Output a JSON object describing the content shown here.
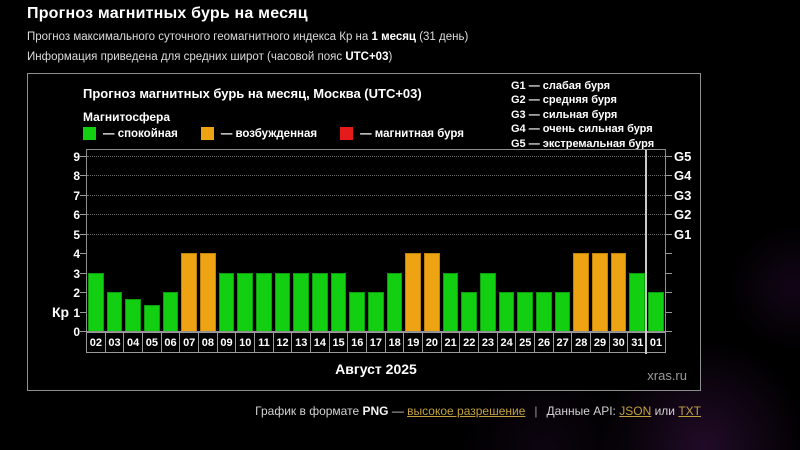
{
  "header": {
    "title": "Прогноз магнитных бурь на месяц",
    "subtitle1_prefix": "Прогноз максимального суточного геомагнитного индекса Кр на ",
    "subtitle1_bold": "1 месяц",
    "subtitle1_suffix": " (31 день)",
    "subtitle2_prefix": "Информация приведена для средних широт (часовой пояс ",
    "subtitle2_bold": "UTC+03",
    "subtitle2_suffix": ")"
  },
  "chart_panel": {
    "title": "Прогноз магнитных бурь на месяц, Москва (UTC+03)",
    "legend_title": "Магнитосфера",
    "legend": [
      {
        "label": "— спокойная",
        "status": "quiet",
        "color": "#12cf12"
      },
      {
        "label": "— возбужденная",
        "status": "excited",
        "color": "#eea412"
      },
      {
        "label": "— магнитная буря",
        "status": "storm",
        "color": "#e51b1b"
      }
    ],
    "g_scale_legend": [
      "G1 — слабая буря",
      "G2 — средняя буря",
      "G3 — сильная буря",
      "G4 — очень сильная буря",
      "G5 — экстремальная буря"
    ],
    "watermark": "xras.ru"
  },
  "chart_data": {
    "type": "bar",
    "title": "Прогноз магнитных бурь на месяц, Москва (UTC+03)",
    "ylabel": "Кр",
    "xlabel": "Август 2025",
    "ylim": [
      0,
      9
    ],
    "y_ticks": [
      0,
      1,
      2,
      3,
      4,
      5,
      6,
      7,
      8,
      9
    ],
    "gridlines_at": [
      5,
      6,
      7,
      8,
      9
    ],
    "grid": "dotted-horizontal-at-storm-levels",
    "legend_position": "top-left",
    "right_axis": [
      {
        "kp": 5,
        "label": "G1"
      },
      {
        "kp": 6,
        "label": "G2"
      },
      {
        "kp": 7,
        "label": "G3"
      },
      {
        "kp": 8,
        "label": "G4"
      },
      {
        "kp": 9,
        "label": "G5"
      }
    ],
    "categories": [
      "02",
      "03",
      "04",
      "05",
      "06",
      "07",
      "08",
      "09",
      "10",
      "11",
      "12",
      "13",
      "14",
      "15",
      "16",
      "17",
      "18",
      "19",
      "20",
      "21",
      "22",
      "23",
      "24",
      "25",
      "26",
      "27",
      "28",
      "29",
      "30",
      "31",
      "01"
    ],
    "values": [
      3,
      2,
      1.67,
      1.33,
      2,
      4,
      4,
      3,
      3,
      3,
      3,
      3,
      3,
      3,
      2,
      2,
      3,
      4,
      4,
      3,
      2,
      3,
      2,
      2,
      2,
      2,
      4,
      4,
      4,
      3,
      2
    ],
    "statuses": [
      "quiet",
      "quiet",
      "quiet",
      "quiet",
      "quiet",
      "excited",
      "excited",
      "quiet",
      "quiet",
      "quiet",
      "quiet",
      "quiet",
      "quiet",
      "quiet",
      "quiet",
      "quiet",
      "quiet",
      "excited",
      "excited",
      "quiet",
      "quiet",
      "quiet",
      "quiet",
      "quiet",
      "quiet",
      "quiet",
      "excited",
      "excited",
      "excited",
      "quiet",
      "quiet"
    ],
    "status_colors": {
      "quiet": "#12cf12",
      "excited": "#eea412",
      "storm": "#e51b1b"
    },
    "status_borders": {
      "quiet": "#0c9c0c",
      "excited": "#bf820a",
      "storm": "#aa1010"
    },
    "month_separator_after_index": 29
  },
  "footer": {
    "png_prefix": "График в формате ",
    "png_bold": "PNG",
    "dash": " — ",
    "high_res_link": "высокое разрешение",
    "separator": "|",
    "api_prefix": "Данные API: ",
    "json_link": "JSON",
    "or_text": " или ",
    "txt_link": "TXT"
  }
}
